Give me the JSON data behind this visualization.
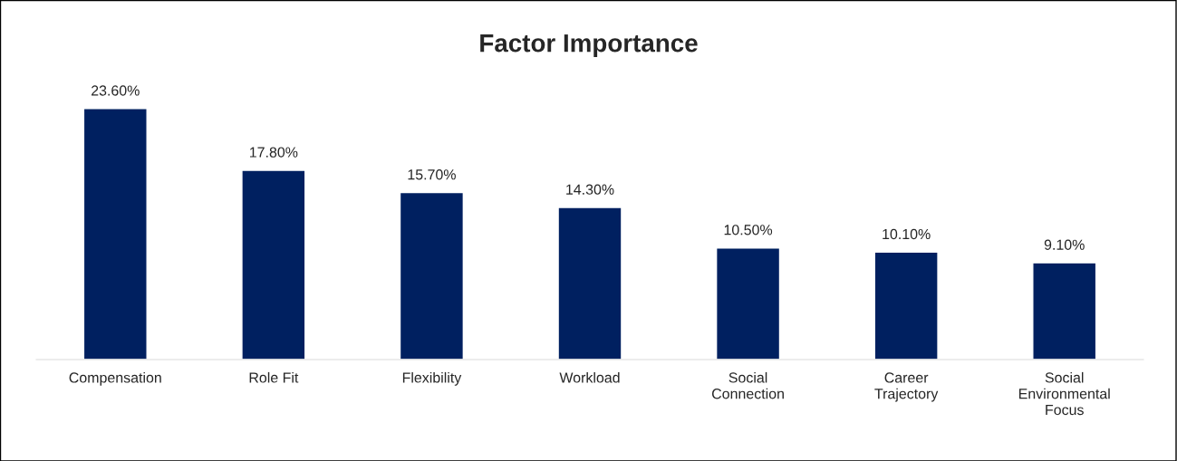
{
  "chart_data": {
    "type": "bar",
    "title": "Factor Importance",
    "categories": [
      "Compensation",
      "Role Fit",
      "Flexibility",
      "Workload",
      "Social\nConnection",
      "Career\nTrajectory",
      "Social\nEnvironmental\nFocus"
    ],
    "values": [
      23.6,
      17.8,
      15.7,
      14.3,
      10.5,
      10.1,
      9.1
    ],
    "value_labels": [
      "23.60%",
      "17.80%",
      "15.70%",
      "14.30%",
      "10.50%",
      "10.10%",
      "9.10%"
    ],
    "color": "#002060",
    "grid": false,
    "legend": false
  }
}
